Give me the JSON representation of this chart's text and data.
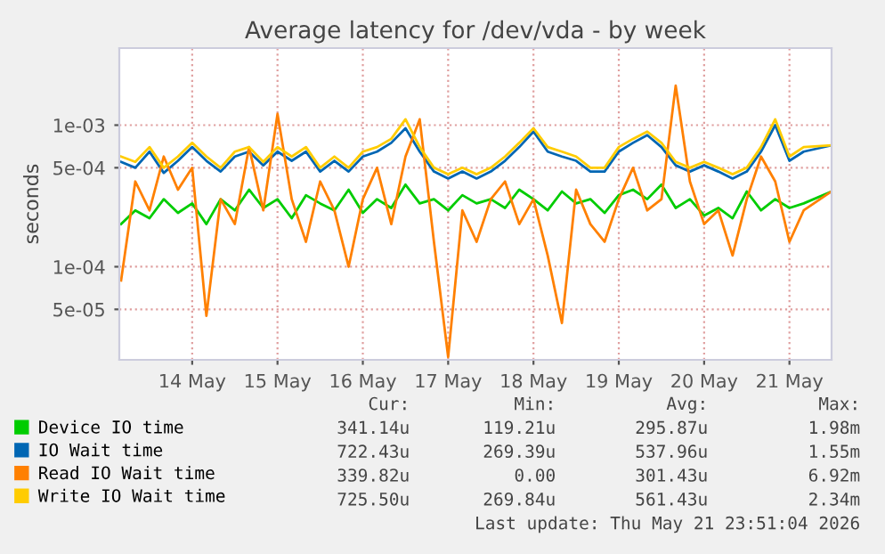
{
  "chart_data": {
    "type": "line",
    "title": "Average latency for /dev/vda - by week",
    "ylabel": "seconds",
    "x": [
      "2026-05-13T16:00",
      "2026-05-13T20:00",
      "2026-05-14T00:00",
      "2026-05-14T04:00",
      "2026-05-14T08:00",
      "2026-05-14T12:00",
      "2026-05-14T16:00",
      "2026-05-14T20:00",
      "2026-05-15T00:00",
      "2026-05-15T04:00",
      "2026-05-15T08:00",
      "2026-05-15T12:00",
      "2026-05-15T16:00",
      "2026-05-15T20:00",
      "2026-05-16T00:00",
      "2026-05-16T04:00",
      "2026-05-16T08:00",
      "2026-05-16T12:00",
      "2026-05-16T16:00",
      "2026-05-16T20:00",
      "2026-05-17T00:00",
      "2026-05-17T04:00",
      "2026-05-17T08:00",
      "2026-05-17T12:00",
      "2026-05-17T16:00",
      "2026-05-17T20:00",
      "2026-05-18T00:00",
      "2026-05-18T04:00",
      "2026-05-18T08:00",
      "2026-05-18T12:00",
      "2026-05-18T16:00",
      "2026-05-18T20:00",
      "2026-05-19T00:00",
      "2026-05-19T04:00",
      "2026-05-19T08:00",
      "2026-05-19T12:00",
      "2026-05-19T16:00",
      "2026-05-19T20:00",
      "2026-05-20T00:00",
      "2026-05-20T04:00",
      "2026-05-20T08:00",
      "2026-05-20T12:00",
      "2026-05-20T16:00",
      "2026-05-20T20:00",
      "2026-05-21T00:00",
      "2026-05-21T04:00",
      "2026-05-21T08:00",
      "2026-05-21T12:00",
      "2026-05-21T16:00",
      "2026-05-21T23:50"
    ],
    "series": [
      {
        "name": "Device IO time",
        "color": "#00cc00",
        "values": [
          0.0002,
          0.00025,
          0.00022,
          0.0003,
          0.00024,
          0.00028,
          0.0002,
          0.0003,
          0.00025,
          0.00035,
          0.00026,
          0.0003,
          0.00022,
          0.00032,
          0.00028,
          0.00025,
          0.00035,
          0.00024,
          0.0003,
          0.00026,
          0.00038,
          0.00028,
          0.0003,
          0.00025,
          0.00032,
          0.00028,
          0.0003,
          0.00026,
          0.00035,
          0.0003,
          0.00025,
          0.00034,
          0.00028,
          0.0003,
          0.00024,
          0.00032,
          0.00035,
          0.0003,
          0.00038,
          0.00026,
          0.0003,
          0.00023,
          0.00026,
          0.00022,
          0.00034,
          0.00025,
          0.0003,
          0.00026,
          0.00028,
          0.00034
        ]
      },
      {
        "name": "IO Wait time",
        "color": "#0066b3",
        "values": [
          0.00055,
          0.0005,
          0.00065,
          0.00046,
          0.00056,
          0.0007,
          0.00056,
          0.00047,
          0.0006,
          0.00065,
          0.00052,
          0.00065,
          0.00056,
          0.00065,
          0.00047,
          0.00056,
          0.00047,
          0.0006,
          0.00065,
          0.00075,
          0.00095,
          0.00065,
          0.00047,
          0.00042,
          0.00047,
          0.00042,
          0.00047,
          0.00056,
          0.0007,
          0.0009,
          0.00065,
          0.0006,
          0.00056,
          0.00047,
          0.00047,
          0.00065,
          0.00075,
          0.00085,
          0.0007,
          0.00052,
          0.00047,
          0.00052,
          0.00047,
          0.00042,
          0.00047,
          0.00065,
          0.001,
          0.00056,
          0.00065,
          0.00072
        ]
      },
      {
        "name": "Read IO Wait time",
        "color": "#ff8000",
        "values": [
          8e-05,
          0.0004,
          0.00025,
          0.0006,
          0.00035,
          0.0005,
          4.5e-05,
          0.0003,
          0.0002,
          0.0007,
          0.00025,
          0.0012,
          0.0003,
          0.00015,
          0.0004,
          0.00025,
          0.0001,
          0.0003,
          0.0005,
          0.0002,
          0.0006,
          0.0011,
          0.00015,
          2.3e-05,
          0.00025,
          0.00015,
          0.0003,
          0.0004,
          0.0002,
          0.0003,
          0.00012,
          4e-05,
          0.00035,
          0.0002,
          0.00015,
          0.0003,
          0.0005,
          0.00025,
          0.0003,
          0.0019,
          0.0004,
          0.0002,
          0.00025,
          0.00012,
          0.0003,
          0.0006,
          0.0004,
          0.00015,
          0.00025,
          0.00034
        ]
      },
      {
        "name": "Write IO Wait time",
        "color": "#ffcc00",
        "values": [
          0.0006,
          0.00055,
          0.0007,
          0.0005,
          0.0006,
          0.00075,
          0.0006,
          0.0005,
          0.00065,
          0.0007,
          0.00055,
          0.0007,
          0.0006,
          0.0007,
          0.0005,
          0.0006,
          0.0005,
          0.00065,
          0.0007,
          0.0008,
          0.0011,
          0.0007,
          0.0005,
          0.00045,
          0.0005,
          0.00045,
          0.0005,
          0.0006,
          0.00075,
          0.00095,
          0.0007,
          0.00065,
          0.0006,
          0.0005,
          0.0005,
          0.0007,
          0.0008,
          0.0009,
          0.00075,
          0.00055,
          0.0005,
          0.00055,
          0.0005,
          0.00045,
          0.0005,
          0.0007,
          0.0011,
          0.0006,
          0.0007,
          0.00072
        ]
      }
    ],
    "log": true,
    "ylim": [
      2.2e-05,
      0.0035
    ],
    "yticks": [
      {
        "value": 5e-05,
        "label": "5e-05"
      },
      {
        "value": 0.0001,
        "label": "1e-04"
      },
      {
        "value": 0.0005,
        "label": "5e-04"
      },
      {
        "value": 0.001,
        "label": "1e-03"
      }
    ],
    "xlim": [
      "2026-05-13T15:30",
      "2026-05-21T23:51"
    ],
    "xticks": [
      {
        "value": "2026-05-14T12:00",
        "label": "14 May"
      },
      {
        "value": "2026-05-15T12:00",
        "label": "15 May"
      },
      {
        "value": "2026-05-16T12:00",
        "label": "16 May"
      },
      {
        "value": "2026-05-17T12:00",
        "label": "17 May"
      },
      {
        "value": "2026-05-18T12:00",
        "label": "18 May"
      },
      {
        "value": "2026-05-19T12:00",
        "label": "19 May"
      },
      {
        "value": "2026-05-20T12:00",
        "label": "20 May"
      },
      {
        "value": "2026-05-21T12:00",
        "label": "21 May"
      }
    ],
    "grid": true,
    "legend": "bottom",
    "annotations": [
      "Cur:",
      "Min:",
      "Avg:",
      "Max:",
      "341.14u",
      "119.21u",
      "295.87u",
      "1.98m",
      "722.43u",
      "269.39u",
      "537.96u",
      "1.55m",
      "339.82u",
      "0.00",
      "301.43u",
      "6.92m",
      "725.50u",
      "269.84u",
      "561.43u",
      "2.34m",
      "Last update: Thu May 21 23:51:04 2026"
    ]
  }
}
